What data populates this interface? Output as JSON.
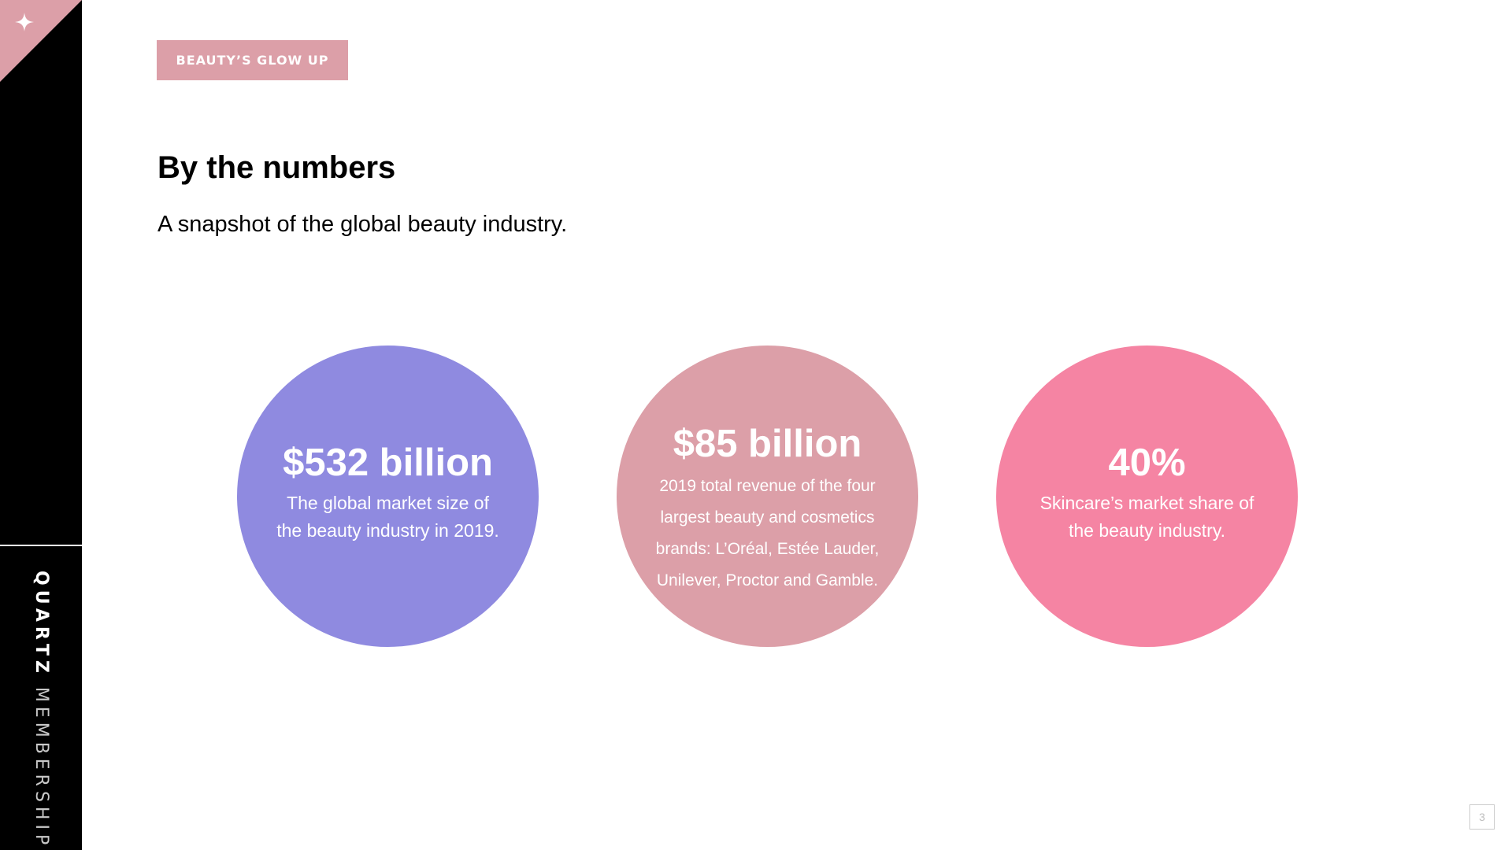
{
  "tag": "BEAUTY’S GLOW UP",
  "title": "By the numbers",
  "subtitle": "A snapshot of the global beauty industry.",
  "stats": [
    {
      "value": "$532 billion",
      "desc": "The global market size of\nthe beauty industry in 2019.",
      "color": "#8f8ae0"
    },
    {
      "value": "$85 billion",
      "desc": "2019 total revenue of the four\nlargest beauty and cosmetics\nbrands: L’Oréal, Estée Lauder,\nUnilever, Proctor and Gamble.",
      "color": "#dc9fa8"
    },
    {
      "value": "40%",
      "desc": "Skincare’s market share of\nthe beauty industry.",
      "color": "#f584a3"
    }
  ],
  "brand": {
    "strong": "QUARTZ",
    "light": "MEMBERSHIP"
  },
  "page_number": "3",
  "colors": {
    "accent_pink": "#dc9fa8",
    "sidebar": "#000000"
  },
  "icons": {
    "corner": "sparkle-icon"
  }
}
